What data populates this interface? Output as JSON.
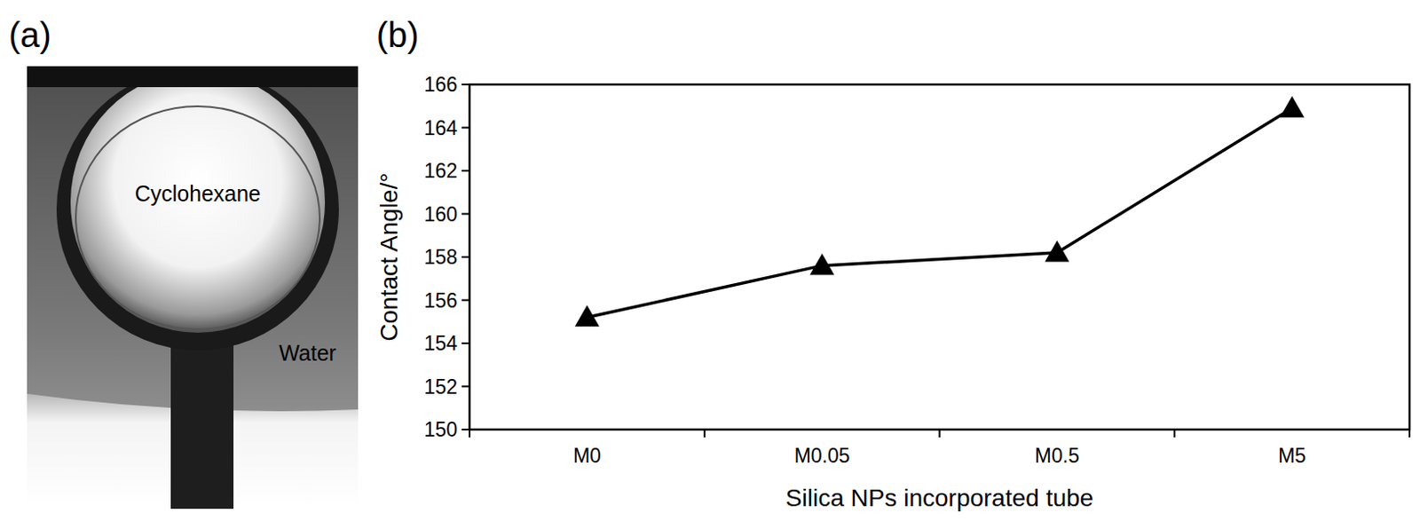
{
  "chart_data": {
    "type": "line",
    "x_label": "Silica NPs incorporated tube",
    "y_label": "Contact Angle/°",
    "categories": [
      "M0",
      "M0.05",
      "M0.5",
      "M5"
    ],
    "values": [
      155.2,
      157.6,
      158.2,
      164.9
    ],
    "color": "#000000",
    "marker": "triangle",
    "line_style": "solid",
    "ylim": [
      150,
      166
    ],
    "yticks": [
      150,
      152,
      154,
      156,
      158,
      160,
      162,
      164,
      166
    ],
    "grid": false
  },
  "figure": {
    "panel_labels": [
      "(a)",
      "(b)"
    ],
    "photo_labels": [
      "Cyclohexane",
      "Water"
    ]
  }
}
